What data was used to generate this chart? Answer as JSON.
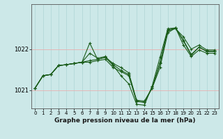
{
  "xlabel": "Graphe pression niveau de la mer (hPa)",
  "background_color": "#cce8e8",
  "line_color": "#1a5c1a",
  "grid_color": "#afd4d4",
  "yticks": [
    1021,
    1022
  ],
  "ylim": [
    1020.55,
    1023.1
  ],
  "xlim": [
    -0.5,
    23.5
  ],
  "series": [
    [
      1021.05,
      1021.35,
      1021.38,
      1021.6,
      1021.62,
      1021.65,
      1021.68,
      1021.72,
      1021.75,
      1021.8,
      1021.65,
      1021.55,
      1021.42,
      1020.75,
      1020.73,
      1021.05,
      1021.65,
      1022.45,
      1022.5,
      1022.3,
      1022.0,
      1022.1,
      1021.98,
      1021.98
    ],
    [
      1021.05,
      1021.35,
      1021.38,
      1021.6,
      1021.62,
      1021.65,
      1021.68,
      1022.15,
      1021.75,
      1021.8,
      1021.6,
      1021.35,
      1021.15,
      1020.65,
      1020.63,
      1021.1,
      1021.8,
      1022.5,
      1022.52,
      1022.2,
      1021.85,
      1022.05,
      1021.95,
      1021.95
    ],
    [
      1021.05,
      1021.35,
      1021.38,
      1021.6,
      1021.62,
      1021.65,
      1021.68,
      1021.68,
      1021.72,
      1021.75,
      1021.55,
      1021.45,
      1021.35,
      1020.72,
      1020.7,
      1021.05,
      1021.55,
      1022.4,
      1022.52,
      1022.1,
      1021.82,
      1021.98,
      1021.9,
      1021.9
    ],
    [
      1021.05,
      1021.35,
      1021.38,
      1021.6,
      1021.62,
      1021.65,
      1021.68,
      1021.9,
      1021.78,
      1021.82,
      1021.62,
      1021.48,
      1021.38,
      1020.73,
      1020.7,
      1021.07,
      1021.67,
      1022.47,
      1022.52,
      1022.22,
      1021.87,
      1022.05,
      1021.94,
      1021.94
    ]
  ]
}
